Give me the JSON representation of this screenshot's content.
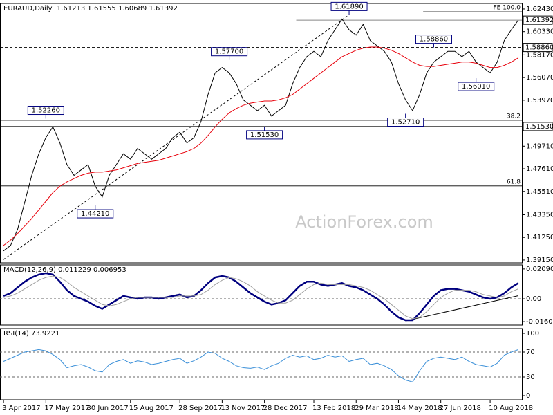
{
  "chart_data": [
    {
      "type": "line",
      "title": "EURAUD,Daily  1.61213 1.61555 1.60689 1.61392",
      "watermark": "ActionForex.com",
      "categories": [
        "3 Apr 2017",
        null,
        null,
        null,
        null,
        null,
        "17 May 2017",
        null,
        null,
        null,
        null,
        null,
        "30 Jun 2017",
        null,
        null,
        null,
        null,
        null,
        "15 Aug 2017",
        null,
        null,
        null,
        null,
        null,
        null,
        "28 Sep 2017",
        null,
        null,
        null,
        null,
        null,
        "13 Nov 2017",
        null,
        null,
        null,
        null,
        null,
        "28 Dec 2017",
        null,
        null,
        null,
        null,
        null,
        null,
        "13 Feb 2018",
        null,
        null,
        null,
        null,
        null,
        "29 Mar 2018",
        null,
        null,
        null,
        null,
        null,
        "14 May 2018",
        null,
        null,
        null,
        null,
        null,
        "27 Jun 2018",
        null,
        null,
        null,
        null,
        null,
        null,
        "10 Aug 2018",
        null,
        null,
        null,
        null
      ],
      "series": [
        {
          "color": "#000000",
          "width": 1,
          "values": [
            1.4,
            1.405,
            1.42,
            1.445,
            1.47,
            1.49,
            1.505,
            1.515,
            1.5,
            1.48,
            1.47,
            1.475,
            1.48,
            1.46,
            1.45,
            1.47,
            1.48,
            1.49,
            1.485,
            1.495,
            1.49,
            1.485,
            1.49,
            1.495,
            1.505,
            1.51,
            1.5,
            1.505,
            1.52,
            1.545,
            1.565,
            1.57,
            1.565,
            1.555,
            1.54,
            1.535,
            1.53,
            1.535,
            1.525,
            1.53,
            1.535,
            1.555,
            1.57,
            1.58,
            1.585,
            1.58,
            1.595,
            1.605,
            1.615,
            1.605,
            1.6,
            1.61,
            1.595,
            1.59,
            1.585,
            1.575,
            1.555,
            1.54,
            1.53,
            1.545,
            1.565,
            1.575,
            1.58,
            1.585,
            1.585,
            1.58,
            1.585,
            1.575,
            1.57,
            1.565,
            1.575,
            1.595,
            1.605,
            1.614
          ]
        },
        {
          "color": "#e8000b",
          "width": 1,
          "values": [
            1.405,
            1.41,
            1.416,
            1.423,
            1.43,
            1.438,
            1.446,
            1.454,
            1.46,
            1.464,
            1.467,
            1.47,
            1.472,
            1.473,
            1.473,
            1.474,
            1.475,
            1.477,
            1.479,
            1.481,
            1.482,
            1.483,
            1.484,
            1.486,
            1.488,
            1.49,
            1.492,
            1.495,
            1.5,
            1.507,
            1.515,
            1.522,
            1.528,
            1.532,
            1.535,
            1.537,
            1.538,
            1.539,
            1.539,
            1.54,
            1.542,
            1.545,
            1.55,
            1.555,
            1.56,
            1.565,
            1.57,
            1.575,
            1.58,
            1.583,
            1.586,
            1.588,
            1.589,
            1.589,
            1.588,
            1.586,
            1.583,
            1.579,
            1.575,
            1.572,
            1.571,
            1.571,
            1.572,
            1.573,
            1.574,
            1.575,
            1.575,
            1.574,
            1.572,
            1.57,
            1.57,
            1.572,
            1.575,
            1.579
          ]
        }
      ],
      "ylim": [
        1.3889,
        1.6294
      ],
      "yticks": [
        {
          "value": 1.6243,
          "label": "1.62430"
        },
        {
          "value": 1.6033,
          "label": "1.60330"
        },
        {
          "value": 1.5817,
          "label": "1.58170"
        },
        {
          "value": 1.5607,
          "label": "1.56070"
        },
        {
          "value": 1.5397,
          "label": "1.53970"
        },
        {
          "value": 1.4971,
          "label": "1.49710"
        },
        {
          "value": 1.4761,
          "label": "1.47610"
        },
        {
          "value": 1.4551,
          "label": "1.45510"
        },
        {
          "value": 1.4335,
          "label": "1.43350"
        },
        {
          "value": 1.4125,
          "label": "1.41250"
        },
        {
          "value": 1.3915,
          "label": "1.39150"
        }
      ],
      "levels": [
        {
          "value": 1.61392,
          "label": "1.61392",
          "style": "solid",
          "color": "#888888",
          "start": 42
        },
        {
          "value": 1.5886,
          "label": "1.58860",
          "style": "dashed",
          "color": "#000000",
          "start": 0
        },
        {
          "value": 1.5153,
          "label": "1.51530",
          "style": "solid",
          "color": "#000000",
          "start": 0
        }
      ],
      "fib_levels": [
        {
          "value": 1.6217,
          "label": "FE 100.0",
          "start": 60
        },
        {
          "value": 1.521,
          "label": "38.2",
          "start": 0
        },
        {
          "value": 1.4602,
          "label": "61.8",
          "start": 0
        }
      ],
      "annotations": [
        {
          "label": "1.61890",
          "value": 1.6189,
          "index": 49,
          "side": "above"
        },
        {
          "label": "1.57700",
          "value": 1.577,
          "index": 32,
          "side": "above"
        },
        {
          "label": "1.52260",
          "value": 1.5226,
          "index": 6,
          "side": "above"
        },
        {
          "label": "1.51530",
          "value": 1.5153,
          "index": 37,
          "side": "below"
        },
        {
          "label": "1.44210",
          "value": 1.4421,
          "index": 13,
          "side": "below"
        },
        {
          "label": "1.58860",
          "value": 1.5886,
          "index": 61,
          "side": "above"
        },
        {
          "label": "1.52710",
          "value": 1.5271,
          "index": 57,
          "side": "below"
        },
        {
          "label": "1.56010",
          "value": 1.5601,
          "index": 67,
          "side": "below"
        }
      ],
      "trendlines": [
        {
          "x": [
            0,
            49
          ],
          "values": [
            1.392,
            1.6189
          ],
          "style": "dashed"
        }
      ]
    },
    {
      "type": "line",
      "title": "MACD(12,26,9) 0.011229 0.006953",
      "series": [
        {
          "color": "#00007f",
          "width": 2.5,
          "values": [
            0.002,
            0.004,
            0.008,
            0.012,
            0.015,
            0.017,
            0.018,
            0.017,
            0.012,
            0.006,
            0.002,
            0.0,
            -0.002,
            -0.005,
            -0.007,
            -0.004,
            -0.001,
            0.002,
            0.001,
            0.0,
            0.001,
            0.001,
            0.0,
            0.001,
            0.002,
            0.003,
            0.001,
            0.002,
            0.006,
            0.011,
            0.015,
            0.016,
            0.015,
            0.012,
            0.008,
            0.004,
            0.001,
            -0.002,
            -0.004,
            -0.003,
            -0.001,
            0.004,
            0.009,
            0.012,
            0.012,
            0.01,
            0.009,
            0.01,
            0.011,
            0.009,
            0.008,
            0.006,
            0.003,
            0.0,
            -0.004,
            -0.009,
            -0.013,
            -0.015,
            -0.015,
            -0.01,
            -0.004,
            0.002,
            0.006,
            0.007,
            0.007,
            0.006,
            0.005,
            0.003,
            0.001,
            0.0,
            0.001,
            0.004,
            0.008,
            0.011
          ]
        },
        {
          "color": "#a0a0a0",
          "width": 1,
          "values": [
            0.001,
            0.002,
            0.004,
            0.007,
            0.01,
            0.013,
            0.015,
            0.016,
            0.015,
            0.012,
            0.008,
            0.005,
            0.002,
            -0.001,
            -0.004,
            -0.005,
            -0.004,
            -0.002,
            0.0,
            0.001,
            0.001,
            0.001,
            0.001,
            0.001,
            0.001,
            0.002,
            0.002,
            0.002,
            0.003,
            0.006,
            0.01,
            0.013,
            0.015,
            0.014,
            0.012,
            0.009,
            0.005,
            0.002,
            -0.001,
            -0.003,
            -0.003,
            -0.001,
            0.003,
            0.007,
            0.01,
            0.011,
            0.01,
            0.01,
            0.01,
            0.01,
            0.009,
            0.008,
            0.006,
            0.003,
            0.0,
            -0.004,
            -0.008,
            -0.012,
            -0.014,
            -0.013,
            -0.009,
            -0.004,
            0.001,
            0.004,
            0.006,
            0.006,
            0.006,
            0.005,
            0.003,
            0.002,
            0.001,
            0.002,
            0.005,
            0.007
          ]
        }
      ],
      "ylim": [
        -0.0184,
        0.02375
      ],
      "yticks": [
        0.020904,
        {
          "value": 0,
          "label": "0.00"
        },
        -0.016023
      ],
      "guides": [
        0
      ],
      "trendlines": [
        {
          "x": [
            57,
            73
          ],
          "values": [
            -0.0155,
            0.0022
          ],
          "style": "solid"
        }
      ]
    },
    {
      "type": "line",
      "title": "RSI(14) 73.9221",
      "series": [
        {
          "color": "#3a8fd8",
          "width": 1,
          "values": [
            55,
            60,
            65,
            70,
            72,
            74,
            72,
            66,
            58,
            45,
            48,
            50,
            46,
            40,
            38,
            50,
            55,
            58,
            52,
            56,
            54,
            50,
            52,
            55,
            58,
            60,
            52,
            56,
            62,
            70,
            68,
            60,
            55,
            48,
            45,
            44,
            46,
            42,
            48,
            52,
            60,
            65,
            62,
            64,
            58,
            60,
            65,
            62,
            64,
            55,
            58,
            60,
            50,
            52,
            48,
            42,
            32,
            25,
            22,
            40,
            55,
            60,
            62,
            60,
            58,
            62,
            55,
            50,
            48,
            46,
            52,
            65,
            70,
            74
          ]
        }
      ],
      "ylim": [
        -6.7,
        107.8
      ],
      "yticks": [
        100,
        70,
        30,
        0
      ],
      "guides": [
        70,
        30
      ]
    }
  ]
}
